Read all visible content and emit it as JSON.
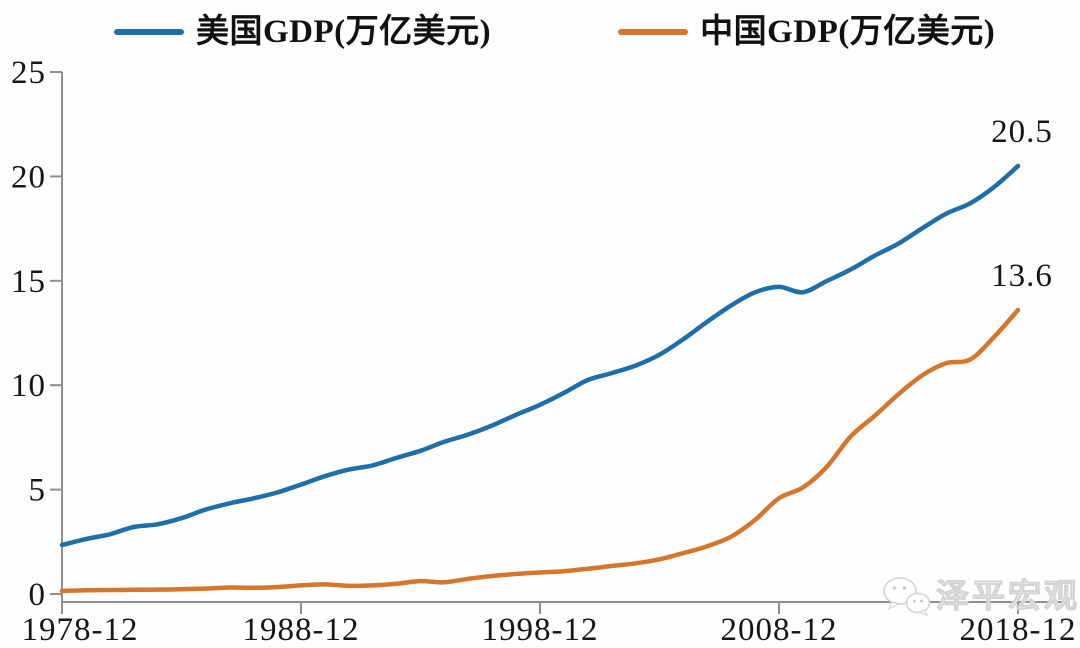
{
  "chart_data": {
    "type": "line",
    "title": "",
    "legend_position": "top",
    "grid": false,
    "x_axis": {
      "tick_labels": [
        "1978-12",
        "1988-12",
        "1998-12",
        "2008-12",
        "2018-12"
      ],
      "tick_years": [
        1978,
        1988,
        1998,
        2008,
        2018
      ],
      "range_years": [
        1978,
        2018
      ]
    },
    "y_axis": {
      "ticks": [
        0,
        5,
        10,
        15,
        20,
        25
      ],
      "range": [
        0,
        25
      ]
    },
    "years": [
      1978,
      1979,
      1980,
      1981,
      1982,
      1983,
      1984,
      1985,
      1986,
      1987,
      1988,
      1989,
      1990,
      1991,
      1992,
      1993,
      1994,
      1995,
      1996,
      1997,
      1998,
      1999,
      2000,
      2001,
      2002,
      2003,
      2004,
      2005,
      2006,
      2007,
      2008,
      2009,
      2010,
      2011,
      2012,
      2013,
      2014,
      2015,
      2016,
      2017,
      2018
    ],
    "series": [
      {
        "name": "美国GDP(万亿美元)",
        "color": "#1e6fa9",
        "end_label": "20.5",
        "values": [
          2.35,
          2.63,
          2.86,
          3.21,
          3.34,
          3.63,
          4.04,
          4.34,
          4.58,
          4.86,
          5.24,
          5.64,
          5.96,
          6.16,
          6.52,
          6.86,
          7.29,
          7.64,
          8.07,
          8.58,
          9.06,
          9.63,
          10.25,
          10.58,
          10.94,
          11.46,
          12.21,
          13.04,
          13.82,
          14.45,
          14.71,
          14.45,
          14.99,
          15.54,
          16.2,
          16.78,
          17.52,
          18.22,
          18.71,
          19.49,
          20.5
        ]
      },
      {
        "name": "中国GDP(万亿美元)",
        "color": "#d4772c",
        "end_label": "13.6",
        "values": [
          0.15,
          0.18,
          0.19,
          0.2,
          0.21,
          0.23,
          0.26,
          0.31,
          0.3,
          0.33,
          0.41,
          0.46,
          0.39,
          0.41,
          0.49,
          0.62,
          0.56,
          0.73,
          0.86,
          0.96,
          1.03,
          1.09,
          1.21,
          1.34,
          1.47,
          1.66,
          1.96,
          2.29,
          2.75,
          3.55,
          4.59,
          5.1,
          6.09,
          7.55,
          8.53,
          9.57,
          10.48,
          11.06,
          11.23,
          12.31,
          13.6
        ]
      }
    ]
  },
  "watermark": {
    "text": "泽平宏观",
    "icon": "wechat-logo-icon"
  },
  "colors": {
    "axis": "#8f8f8f",
    "tick_text": "#161616",
    "background": "#fdfdfd",
    "watermark": "#ffffff",
    "watermark_outline": "#d2d2d2"
  }
}
